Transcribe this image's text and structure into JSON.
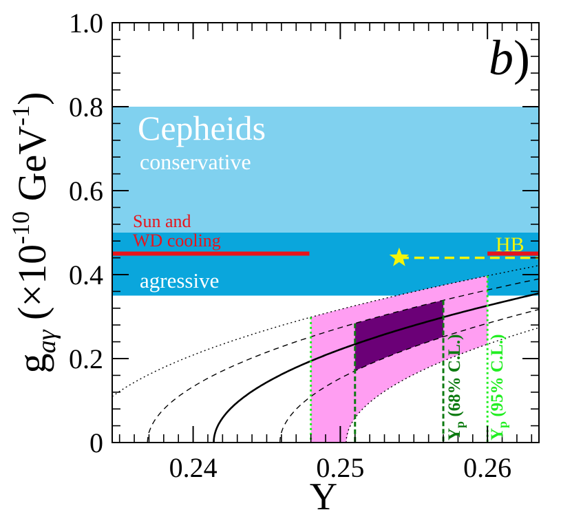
{
  "chart_data": {
    "type": "line",
    "panel_label": "b",
    "panel_label_paren": ")",
    "xlabel": "Y",
    "ylabel_main": "g",
    "ylabel_sub": "aγ",
    "ylabel_rest": " (×10",
    "ylabel_exp": "-10",
    "ylabel_unit": " GeV",
    "ylabel_unit_exp": "-1",
    "ylabel_close": ")",
    "xlim": [
      0.2345,
      0.2635
    ],
    "ylim": [
      0,
      1.0
    ],
    "x_ticks": [
      {
        "value": 0.24,
        "label": "0.24"
      },
      {
        "value": 0.25,
        "label": "0.25"
      },
      {
        "value": 0.26,
        "label": "0.26"
      }
    ],
    "y_ticks": [
      {
        "value": 0,
        "label": "0"
      },
      {
        "value": 0.2,
        "label": "0.2"
      },
      {
        "value": 0.4,
        "label": "0.4"
      },
      {
        "value": 0.6,
        "label": "0.6"
      },
      {
        "value": 0.8,
        "label": "0.8"
      },
      {
        "value": 1.0,
        "label": "1.0"
      }
    ],
    "bands": [
      {
        "name": "Cepheids conservative",
        "y_range": [
          0.35,
          0.8
        ],
        "color": "#80d1ef"
      },
      {
        "name": "Cepheids agressive",
        "y_range": [
          0.35,
          0.5
        ],
        "color": "#0aa6dc"
      }
    ],
    "texts": {
      "cepheids": "Cepheids",
      "conservative": "conservative",
      "agressive": "agressive",
      "sun_line1": "Sun  and",
      "sun_line2": "WD cooling",
      "hb": "HB",
      "yp68_main": "Y",
      "yp68_sub": "p",
      "yp68_rest": " (68% C.L.)",
      "yp95_main": "Y",
      "yp95_sub": "p",
      "yp95_rest": " (95% C.L.)"
    },
    "sun_wd_limit": {
      "y": 0.45,
      "x_range": [
        0.2345,
        0.2479
      ],
      "color": "#e8141b"
    },
    "hb_segment": {
      "y": 0.45,
      "x_range": [
        0.26,
        0.2635
      ],
      "color": "#e8141b"
    },
    "hb_value": {
      "x": 0.254,
      "y": 0.44,
      "x_end": 0.2635,
      "color": "#f5f50a"
    },
    "curve_params": {
      "k": 0.175,
      "shift": [
        0,
        0.0035,
        0.0045,
        -0.0045,
        -0.0055
      ]
    },
    "curves": [
      {
        "name": "central",
        "y0": 0.2414,
        "style": "solid"
      },
      {
        "name": "lower-1sigma",
        "y0": 0.2459,
        "style": "dashed"
      },
      {
        "name": "upper-1sigma",
        "y0": 0.2369,
        "style": "dashed"
      },
      {
        "name": "lower-2sigma",
        "y0": 0.2504,
        "style": "dotted"
      },
      {
        "name": "upper-2sigma",
        "y0": 0.2324,
        "style": "dotted"
      }
    ],
    "region_68": {
      "x_range": [
        0.251,
        0.257
      ],
      "color": "#6b0077"
    },
    "region_95": {
      "x_range": [
        0.248,
        0.26
      ],
      "color": "#ff9ef2"
    },
    "vlines": [
      {
        "name": "95-lower",
        "x": 0.248,
        "color": "#22ee22",
        "style": "dotted"
      },
      {
        "name": "68-lower",
        "x": 0.251,
        "color": "#0c7a10",
        "style": "dashed"
      },
      {
        "name": "68-upper",
        "x": 0.257,
        "color": "#0c7a10",
        "style": "dashed"
      },
      {
        "name": "95-upper",
        "x": 0.26,
        "color": "#22ee22",
        "style": "dotted"
      }
    ]
  }
}
